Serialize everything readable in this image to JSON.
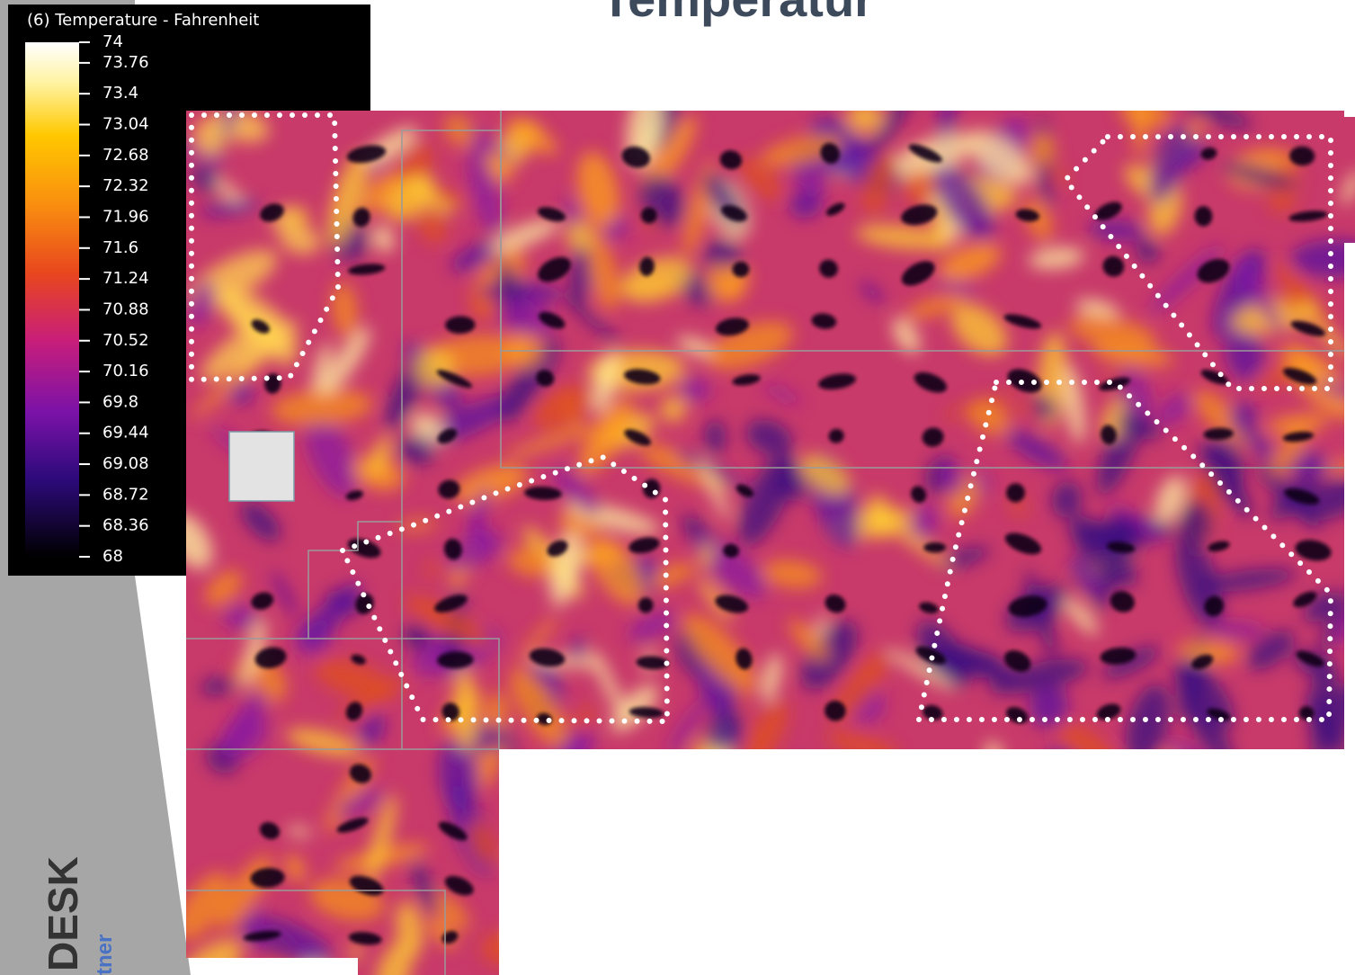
{
  "header": {
    "title": "Temperatur"
  },
  "legend": {
    "title": "(6) Temperature - Fahrenheit",
    "ticks": [
      74,
      73.76,
      73.4,
      73.04,
      72.68,
      72.32,
      71.96,
      71.6,
      71.24,
      70.88,
      70.52,
      70.16,
      69.8,
      69.44,
      69.08,
      68.72,
      68.36,
      68
    ]
  },
  "branding": {
    "logo": "DESK",
    "tagline": "tner"
  }
}
